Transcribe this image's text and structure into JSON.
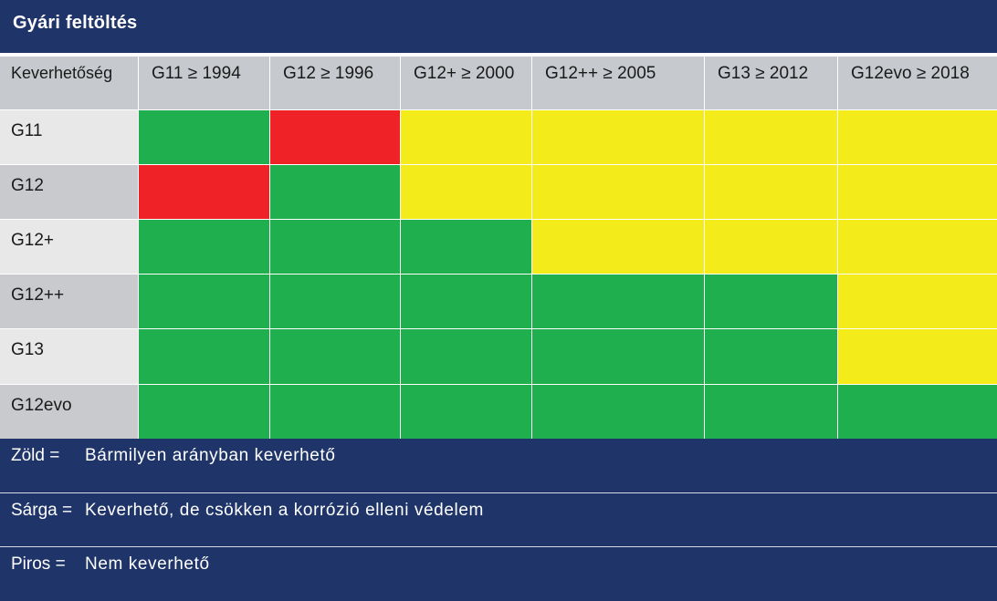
{
  "title": "Gyári feltöltés",
  "chart_data": {
    "type": "table",
    "corner_label": "Keverhetőség",
    "columns": [
      "G11 ≥ 1994",
      "G12 ≥ 1996",
      "G12+ ≥ 2000",
      "G12++ ≥ 2005",
      "G13 ≥ 2012",
      "G12evo ≥ 2018"
    ],
    "rows": [
      "G11",
      "G12",
      "G12+",
      "G12++",
      "G13",
      "G12evo"
    ],
    "values": [
      [
        "green",
        "red",
        "yellow",
        "yellow",
        "yellow",
        "yellow"
      ],
      [
        "red",
        "green",
        "yellow",
        "yellow",
        "yellow",
        "yellow"
      ],
      [
        "green",
        "green",
        "green",
        "yellow",
        "yellow",
        "yellow"
      ],
      [
        "green",
        "green",
        "green",
        "green",
        "green",
        "yellow"
      ],
      [
        "green",
        "green",
        "green",
        "green",
        "green",
        "yellow"
      ],
      [
        "green",
        "green",
        "green",
        "green",
        "green",
        "green"
      ]
    ],
    "colors": {
      "green": "#1faf4e",
      "red": "#ee2227",
      "yellow": "#f3ec1a"
    }
  },
  "legend": [
    {
      "key": "Zöld =",
      "text": "Bármilyen arányban keverhető"
    },
    {
      "key": "Sárga =",
      "text": "Keverhető, de csökken a korrózió elleni védelem"
    },
    {
      "key": "Piros =",
      "text": "Nem keverhető"
    }
  ]
}
